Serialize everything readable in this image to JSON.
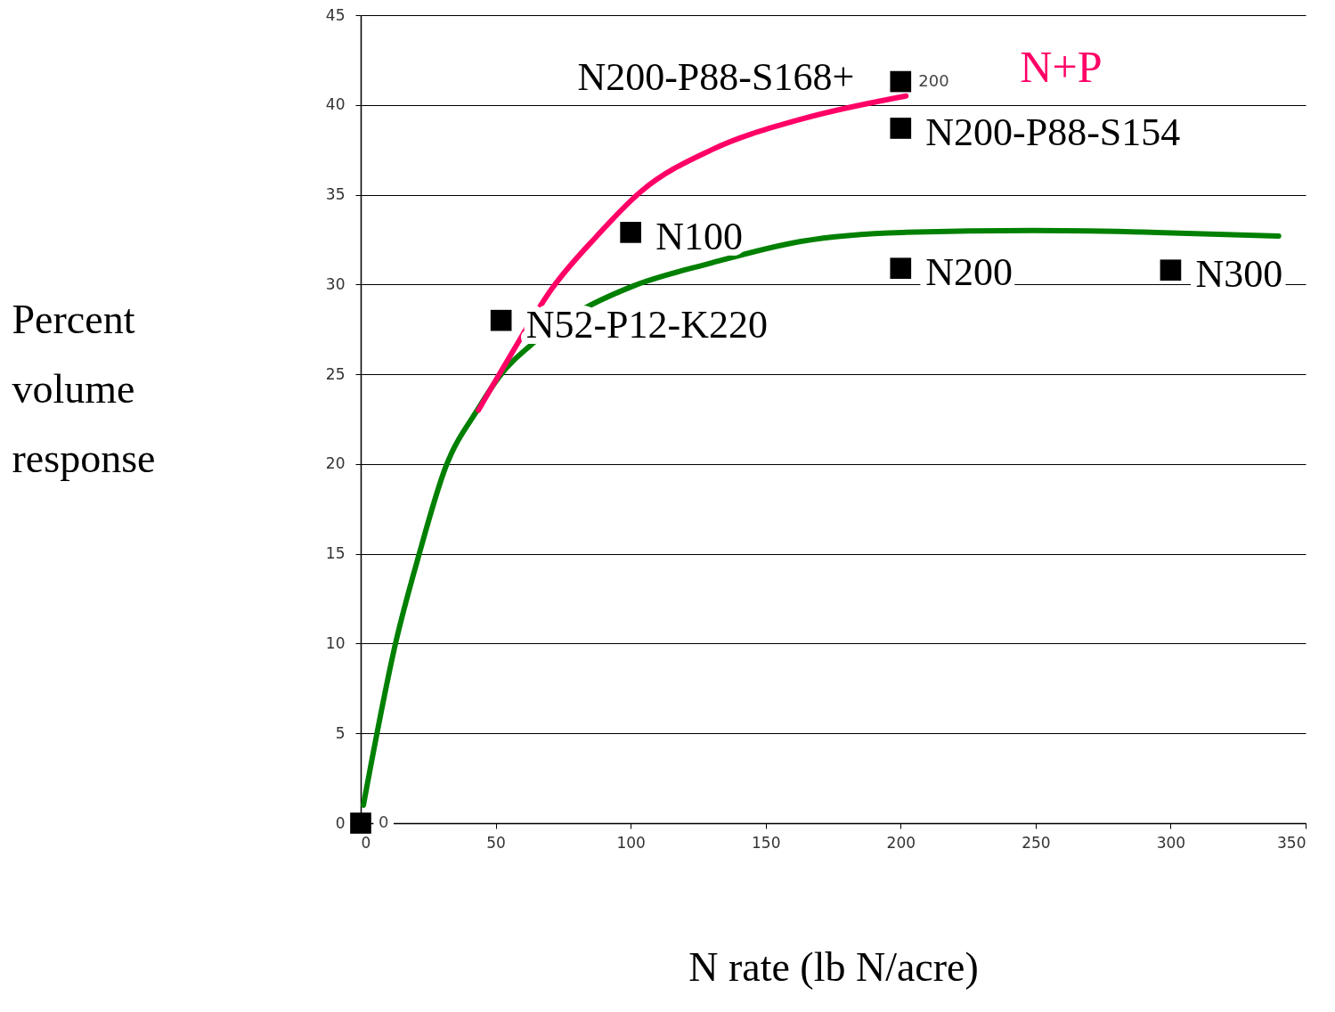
{
  "chart_data": {
    "type": "scatter",
    "xlabel": "N rate (lb N/acre)",
    "ylabel": "Percent volume response",
    "xlim": [
      0,
      350
    ],
    "xticks": [
      0,
      50,
      100,
      150,
      200,
      250,
      300,
      350
    ],
    "ylim": [
      0,
      45
    ],
    "yticks": [
      0,
      5,
      10,
      15,
      20,
      25,
      30,
      35,
      40,
      45
    ],
    "grid": "y",
    "annotations": [
      {
        "text": "0",
        "x": 0,
        "y": 0
      },
      {
        "text": "N52-P12-K220",
        "x": 52,
        "y": 28
      },
      {
        "text": "N100",
        "x": 100,
        "y": 32.9
      },
      {
        "text": "N200-P88-S168+",
        "x": 200,
        "y": 41.3
      },
      {
        "text": "200",
        "x": 200,
        "y": 41.3
      },
      {
        "text": "N200-P88-S154",
        "x": 200,
        "y": 38.7
      },
      {
        "text": "N200",
        "x": 200,
        "y": 30.9
      },
      {
        "text": "N300",
        "x": 300,
        "y": 30.8
      }
    ],
    "series": [
      {
        "marker": "square",
        "color": "#000000",
        "x": [
          0,
          52,
          100,
          200,
          200,
          200,
          300
        ],
        "values": [
          0,
          28,
          32.9,
          41.3,
          38.7,
          30.9,
          30.8
        ]
      },
      {
        "type": "line",
        "color": "#008000",
        "x": [
          1,
          13.2,
          21.5,
          31.4,
          43.6,
          51,
          64.4,
          80.9,
          100.7,
          130,
          163,
          200.7,
          249,
          295,
          340
        ],
        "values": [
          1,
          10.2,
          14.9,
          19.8,
          23.1,
          24.8,
          26.8,
          28.5,
          29.9,
          31.2,
          32.4,
          32.9,
          33,
          32.9,
          32.7
        ]
      },
      {
        "type": "line",
        "name": "N+P",
        "color": "#ff0066",
        "x": [
          43.6,
          54.5,
          71,
          87.5,
          104,
          130,
          163,
          202
        ],
        "values": [
          23,
          25.8,
          29.8,
          32.7,
          35.2,
          37.5,
          39.2,
          40.5
        ]
      }
    ]
  }
}
